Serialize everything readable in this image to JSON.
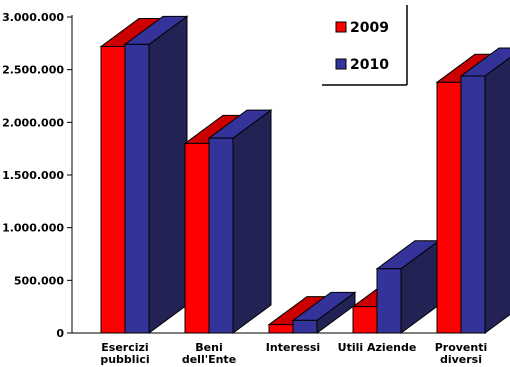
{
  "chart_data": {
    "type": "bar",
    "categories": [
      [
        "Esercizi",
        "pubblici"
      ],
      [
        "Beni",
        "dell'Ente"
      ],
      [
        "Interessi"
      ],
      [
        "Utili Aziende"
      ],
      [
        "Proventi",
        "diversi"
      ]
    ],
    "series": [
      {
        "name": "2009",
        "color": "#ff0000",
        "values": [
          2720000,
          1800000,
          80000,
          250000,
          2380000
        ]
      },
      {
        "name": "2010",
        "color": "#333399",
        "values": [
          2740000,
          1850000,
          120000,
          610000,
          2440000
        ]
      }
    ],
    "y_ticks": [
      "0",
      "500.000",
      "1.000.000",
      "1.500.000",
      "2.000.000",
      "2.500.000",
      "3.000.000"
    ],
    "ylim": [
      0,
      3000000
    ],
    "title": "",
    "xlabel": "",
    "ylabel": "",
    "legend_position": "top-right",
    "grid": false,
    "style": "3d-column"
  }
}
